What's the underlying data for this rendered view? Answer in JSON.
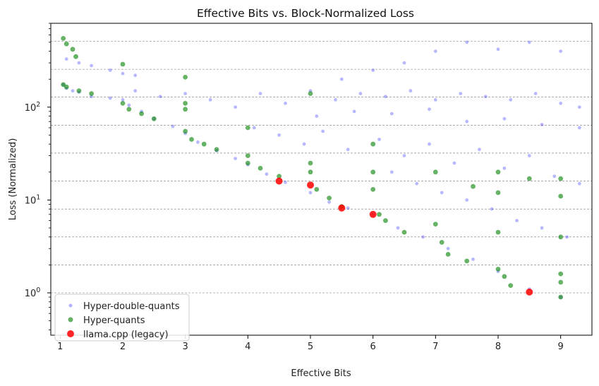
{
  "chart_data": {
    "type": "scatter",
    "title": "Effective Bits vs. Block-Normalized Loss",
    "xlabel": "Effective Bits",
    "ylabel": "Loss (Normalized)",
    "xlim": [
      0.85,
      9.5
    ],
    "ylim": [
      0.35,
      800
    ],
    "yscale": "log",
    "x_ticks": [
      1,
      2,
      3,
      4,
      5,
      6,
      7,
      8,
      9
    ],
    "y_ticks": [
      {
        "value": 1,
        "label": "10"
      },
      {
        "value": 10,
        "label": "10"
      },
      {
        "value": 100,
        "label": "10"
      }
    ],
    "y_tick_exponents": [
      "0",
      "1",
      "2"
    ],
    "y_gridlines": [
      1,
      2,
      4,
      8,
      16,
      32,
      64,
      128,
      256,
      512
    ],
    "grid": "horizontal dashed",
    "legend_position": "lower-left",
    "series": [
      {
        "name": "Hyper-double-quants",
        "color": "#0000ff",
        "marker": "small circle",
        "points": [
          [
            1.05,
            175
          ],
          [
            1.1,
            160
          ],
          [
            1.2,
            150
          ],
          [
            1.3,
            145
          ],
          [
            1.5,
            130
          ],
          [
            1.8,
            125
          ],
          [
            2.0,
            120
          ],
          [
            1.1,
            330
          ],
          [
            1.3,
            300
          ],
          [
            1.5,
            280
          ],
          [
            1.8,
            250
          ],
          [
            2.0,
            230
          ],
          [
            2.2,
            220
          ],
          [
            2.1,
            105
          ],
          [
            2.3,
            90
          ],
          [
            2.5,
            75
          ],
          [
            2.8,
            62
          ],
          [
            3.0,
            52
          ],
          [
            3.2,
            42
          ],
          [
            3.5,
            34
          ],
          [
            3.8,
            28
          ],
          [
            4.0,
            24
          ],
          [
            4.3,
            19
          ],
          [
            4.6,
            15.5
          ],
          [
            5.0,
            12
          ],
          [
            5.3,
            9.5
          ],
          [
            5.6,
            8.2
          ],
          [
            6.0,
            7.0
          ],
          [
            6.4,
            5.0
          ],
          [
            6.8,
            4.0
          ],
          [
            7.2,
            3.0
          ],
          [
            7.6,
            2.3
          ],
          [
            8.0,
            1.7
          ],
          [
            8.5,
            1.1
          ],
          [
            9.0,
            0.9
          ],
          [
            2.2,
            150
          ],
          [
            2.6,
            130
          ],
          [
            3.0,
            140
          ],
          [
            3.4,
            120
          ],
          [
            3.8,
            100
          ],
          [
            4.2,
            140
          ],
          [
            4.6,
            110
          ],
          [
            5.0,
            150
          ],
          [
            5.4,
            120
          ],
          [
            5.8,
            140
          ],
          [
            6.2,
            130
          ],
          [
            6.6,
            150
          ],
          [
            7.0,
            120
          ],
          [
            7.4,
            140
          ],
          [
            7.8,
            130
          ],
          [
            8.2,
            120
          ],
          [
            8.6,
            140
          ],
          [
            9.0,
            110
          ],
          [
            9.3,
            100
          ],
          [
            4.1,
            60
          ],
          [
            4.5,
            50
          ],
          [
            4.9,
            40
          ],
          [
            5.2,
            55
          ],
          [
            5.6,
            35
          ],
          [
            6.1,
            45
          ],
          [
            6.5,
            30
          ],
          [
            6.9,
            40
          ],
          [
            7.3,
            25
          ],
          [
            7.7,
            35
          ],
          [
            8.1,
            22
          ],
          [
            8.5,
            30
          ],
          [
            8.9,
            18
          ],
          [
            9.3,
            15
          ],
          [
            5.5,
            200
          ],
          [
            6.0,
            250
          ],
          [
            6.5,
            300
          ],
          [
            7.0,
            400
          ],
          [
            7.5,
            500
          ],
          [
            8.0,
            420
          ],
          [
            8.5,
            500
          ],
          [
            9.0,
            400
          ],
          [
            6.3,
            20
          ],
          [
            6.7,
            15
          ],
          [
            7.1,
            12
          ],
          [
            7.5,
            10
          ],
          [
            7.9,
            8
          ],
          [
            8.3,
            6
          ],
          [
            8.7,
            5
          ],
          [
            9.1,
            4
          ],
          [
            5.1,
            80
          ],
          [
            5.7,
            90
          ],
          [
            6.3,
            85
          ],
          [
            6.9,
            95
          ],
          [
            7.5,
            70
          ],
          [
            8.1,
            75
          ],
          [
            8.7,
            65
          ],
          [
            9.3,
            60
          ]
        ]
      },
      {
        "name": "Hyper-quants",
        "color": "#008000",
        "marker": "circle",
        "points": [
          [
            1.05,
            550
          ],
          [
            1.1,
            480
          ],
          [
            1.2,
            420
          ],
          [
            1.25,
            350
          ],
          [
            1.05,
            175
          ],
          [
            1.1,
            165
          ],
          [
            1.3,
            150
          ],
          [
            1.5,
            140
          ],
          [
            2.0,
            290
          ],
          [
            2.0,
            110
          ],
          [
            2.1,
            95
          ],
          [
            2.3,
            85
          ],
          [
            2.5,
            75
          ],
          [
            3.0,
            210
          ],
          [
            3.0,
            110
          ],
          [
            3.0,
            95
          ],
          [
            3.0,
            55
          ],
          [
            3.1,
            45
          ],
          [
            3.3,
            40
          ],
          [
            3.5,
            35
          ],
          [
            4.0,
            60
          ],
          [
            4.0,
            30
          ],
          [
            4.0,
            25
          ],
          [
            4.2,
            22
          ],
          [
            4.5,
            18
          ],
          [
            5.0,
            140
          ],
          [
            5.0,
            25
          ],
          [
            5.0,
            20
          ],
          [
            5.1,
            13
          ],
          [
            5.3,
            10.5
          ],
          [
            5.5,
            8.5
          ],
          [
            6.0,
            40
          ],
          [
            6.0,
            20
          ],
          [
            6.0,
            13
          ],
          [
            6.1,
            7
          ],
          [
            6.2,
            6
          ],
          [
            6.5,
            4.5
          ],
          [
            7.0,
            20
          ],
          [
            7.0,
            5.5
          ],
          [
            7.1,
            3.5
          ],
          [
            7.2,
            2.6
          ],
          [
            7.5,
            2.2
          ],
          [
            7.6,
            14
          ],
          [
            8.0,
            20
          ],
          [
            8.0,
            12
          ],
          [
            8.0,
            4.5
          ],
          [
            8.0,
            1.8
          ],
          [
            8.1,
            1.5
          ],
          [
            8.2,
            1.2
          ],
          [
            8.5,
            17
          ],
          [
            9.0,
            17
          ],
          [
            9.0,
            11
          ],
          [
            9.0,
            4
          ],
          [
            9.0,
            1.6
          ],
          [
            9.0,
            1.3
          ],
          [
            9.0,
            0.9
          ]
        ]
      },
      {
        "name": "llama.cpp (legacy)",
        "color": "#ff0000",
        "marker": "circle",
        "points": [
          [
            4.5,
            16
          ],
          [
            5.0,
            14.5
          ],
          [
            5.5,
            8.2
          ],
          [
            6.0,
            7.0
          ],
          [
            8.5,
            1.02
          ]
        ]
      }
    ]
  }
}
